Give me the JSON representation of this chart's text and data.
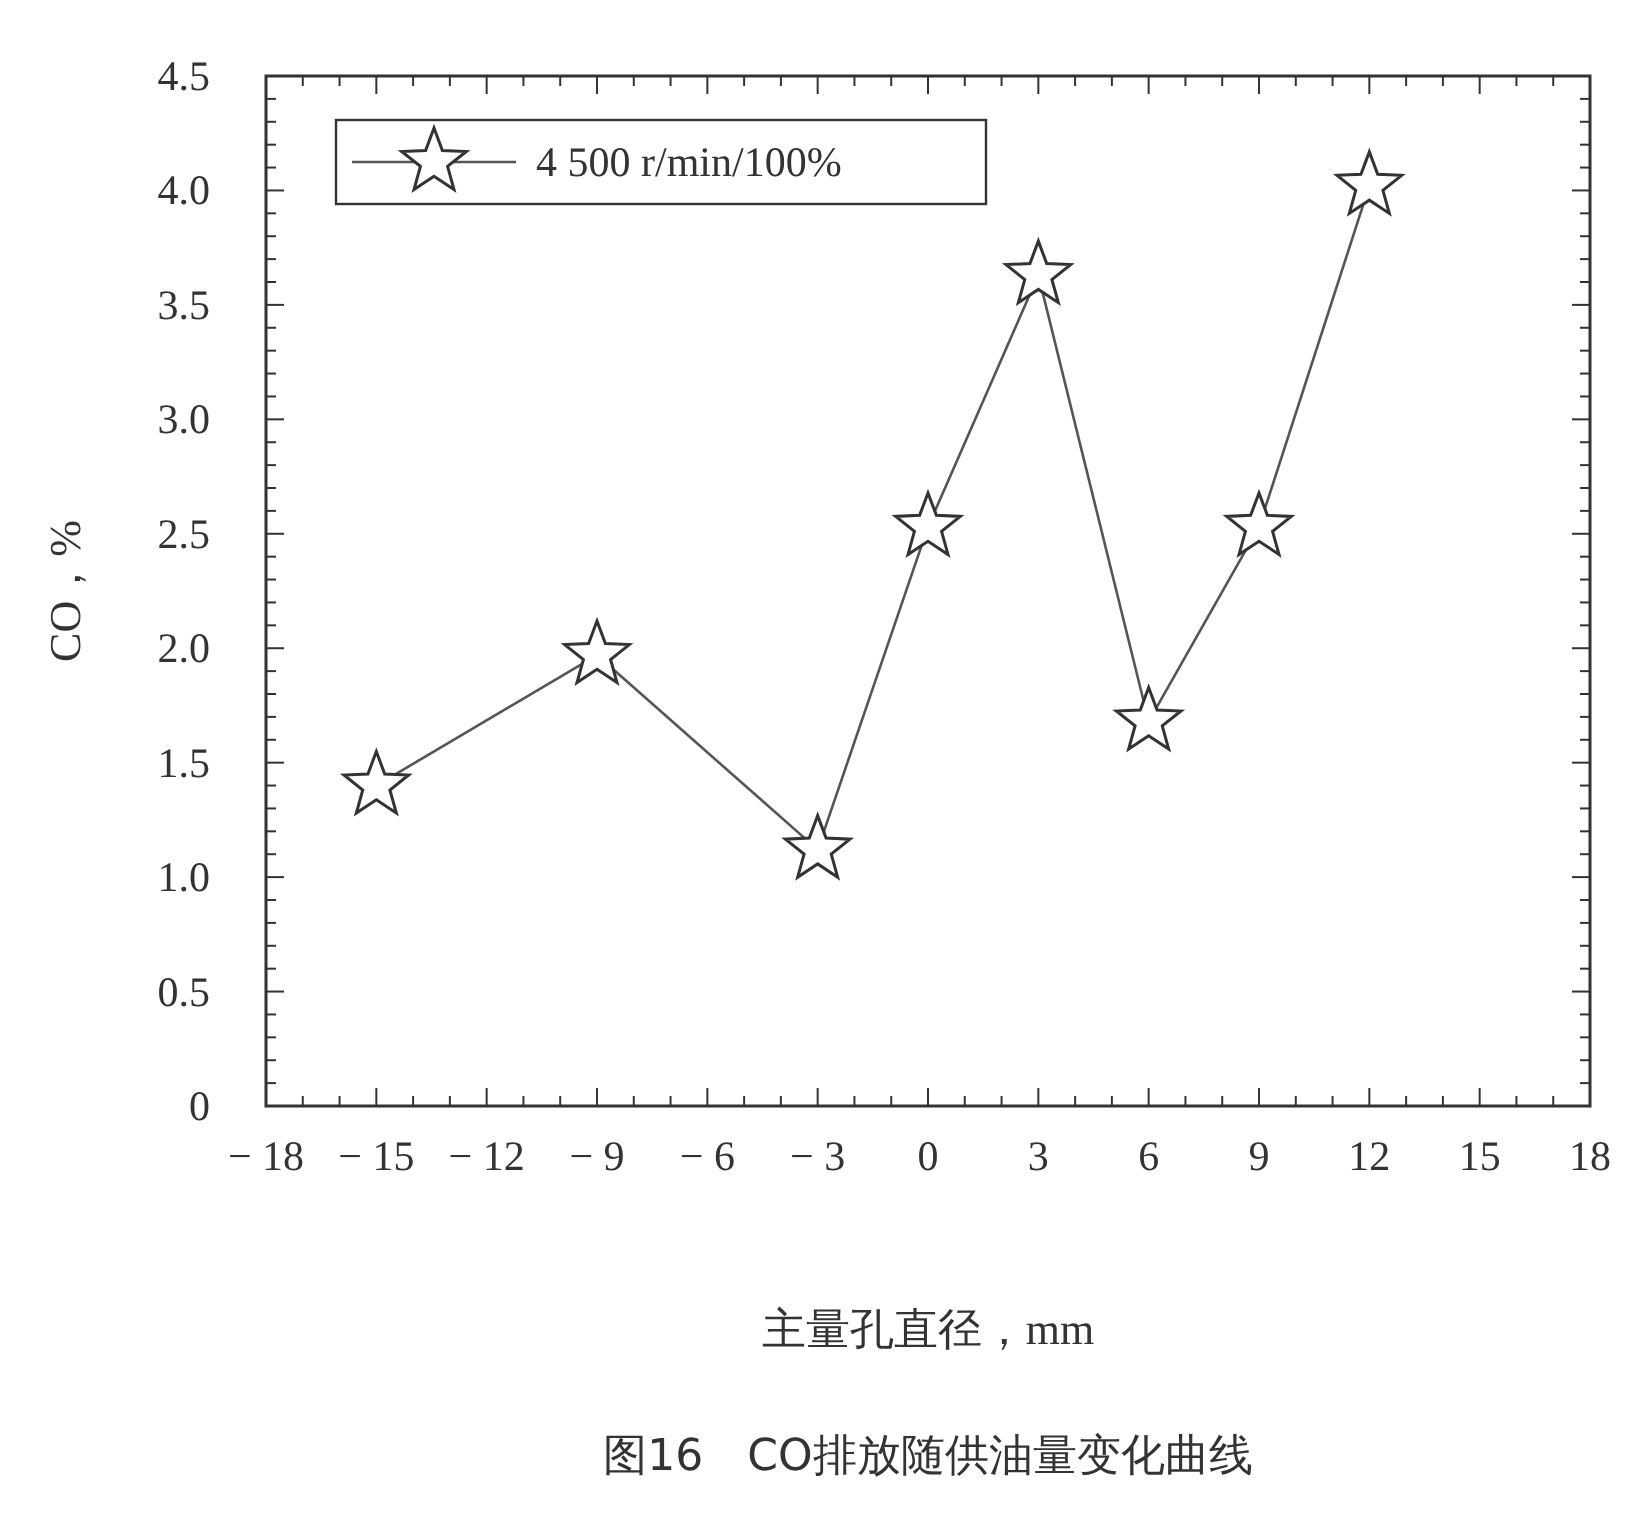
{
  "chart_data": {
    "type": "line",
    "title": "图16　CO排放随供油量变化曲线",
    "xlabel": "主量孔直径，mm",
    "ylabel": "CO，%",
    "x": [
      -15,
      -9,
      -3,
      0,
      3,
      6,
      9,
      12
    ],
    "series": [
      {
        "name": "4 500 r/min/100%",
        "color": "#555555",
        "values": [
          1.4,
          1.97,
          1.12,
          2.53,
          3.63,
          1.68,
          2.53,
          4.02
        ]
      }
    ],
    "xlim": [
      -18,
      18
    ],
    "xticks": [
      {
        "value": -18,
        "label": "− 18"
      },
      {
        "value": -15,
        "label": "− 15"
      },
      {
        "value": -12,
        "label": "− 12"
      },
      {
        "value": -9,
        "label": "− 9"
      },
      {
        "value": -6,
        "label": "− 6"
      },
      {
        "value": -3,
        "label": "− 3"
      },
      0,
      3,
      6,
      9,
      12,
      15,
      18
    ],
    "ylim": [
      0,
      4.5
    ],
    "yticks": [
      0,
      {
        "value": 0.5,
        "label": "0.5"
      },
      {
        "value": 1,
        "label": "1.0"
      },
      {
        "value": 1.5,
        "label": "1.5"
      },
      {
        "value": 2,
        "label": "2.0"
      },
      {
        "value": 2.5,
        "label": "2.5"
      },
      {
        "value": 3,
        "label": "3.0"
      },
      {
        "value": 3.5,
        "label": "3.5"
      },
      {
        "value": 4,
        "label": "4.0"
      },
      {
        "value": 4.5,
        "label": "4.5"
      }
    ],
    "grid": false,
    "legend": "top left",
    "marker": "star",
    "line_style": "solid"
  }
}
